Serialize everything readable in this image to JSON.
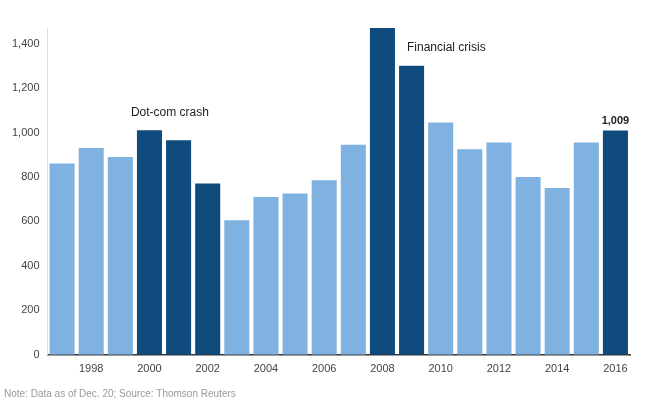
{
  "chart_data": {
    "type": "bar",
    "categories": [
      null,
      "1998",
      null,
      "2000",
      null,
      "2002",
      null,
      "2004",
      null,
      "2006",
      null,
      "2008",
      null,
      "2010",
      null,
      "2012",
      null,
      "2014",
      null,
      "2016"
    ],
    "values": [
      860,
      930,
      890,
      1010,
      965,
      770,
      605,
      710,
      725,
      785,
      945,
      1470,
      1300,
      1045,
      925,
      955,
      800,
      750,
      955,
      1009
    ],
    "value_labels": [
      null,
      null,
      null,
      null,
      null,
      null,
      null,
      null,
      null,
      null,
      null,
      null,
      null,
      null,
      null,
      null,
      null,
      null,
      null,
      "1,009"
    ],
    "colors": [
      "#7fb2e0",
      "#7fb2e0",
      "#7fb2e0",
      "#0f4c7d",
      "#0f4c7d",
      "#0f4c7d",
      "#7fb2e0",
      "#7fb2e0",
      "#7fb2e0",
      "#7fb2e0",
      "#7fb2e0",
      "#0f4c7d",
      "#0f4c7d",
      "#7fb2e0",
      "#7fb2e0",
      "#7fb2e0",
      "#7fb2e0",
      "#7fb2e0",
      "#7fb2e0",
      "#0f4c7d"
    ],
    "ylim": [
      0,
      1470
    ],
    "yticks": [
      0,
      200,
      400,
      600,
      800,
      {
        "value": 1000,
        "label": "1,000"
      },
      {
        "value": 1200,
        "label": "1,200"
      },
      {
        "value": 1400,
        "label": "1,400"
      }
    ],
    "grid": false,
    "annotations": [
      {
        "text": "Dot-com crash",
        "at": "2000"
      },
      {
        "text": "Financial crisis",
        "at": "2008"
      }
    ],
    "note": "Note: Data as of Dec. 20; Source: Thomson Reuters"
  }
}
